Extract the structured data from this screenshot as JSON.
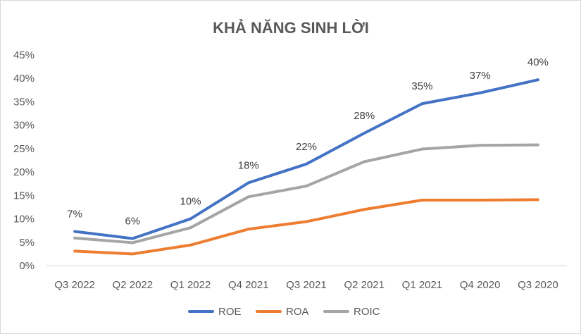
{
  "chart_data": {
    "type": "line",
    "title": "KHẢ NĂNG SINH LỜI",
    "categories": [
      "Q3 2022",
      "Q2 2022",
      "Q1 2022",
      "Q4 2021",
      "Q3 2021",
      "Q2 2021",
      "Q1 2021",
      "Q4 2020",
      "Q3 2020"
    ],
    "ylim": [
      0,
      45
    ],
    "y_ticks": [
      0,
      5,
      10,
      15,
      20,
      25,
      30,
      35,
      40,
      45
    ],
    "y_tick_labels": [
      "0%",
      "5%",
      "10%",
      "15%",
      "20%",
      "25%",
      "30%",
      "35%",
      "40%",
      "45%"
    ],
    "grid": false,
    "legend_position": "bottom",
    "series": [
      {
        "name": "ROE",
        "color": "#4472C4",
        "values": [
          7.3,
          5.8,
          10.0,
          17.7,
          21.7,
          28.3,
          34.6,
          36.9,
          39.7
        ],
        "data_labels": [
          "7%",
          "6%",
          "10%",
          "18%",
          "22%",
          "28%",
          "35%",
          "37%",
          "40%"
        ]
      },
      {
        "name": "ROA",
        "color": "#ED7D31",
        "values": [
          3.1,
          2.5,
          4.4,
          7.8,
          9.4,
          12.0,
          14.0,
          14.0,
          14.1
        ]
      },
      {
        "name": "ROIC",
        "color": "#A5A5A5",
        "values": [
          5.9,
          4.9,
          8.1,
          14.7,
          17.0,
          22.2,
          24.9,
          25.7,
          25.8
        ]
      }
    ]
  }
}
